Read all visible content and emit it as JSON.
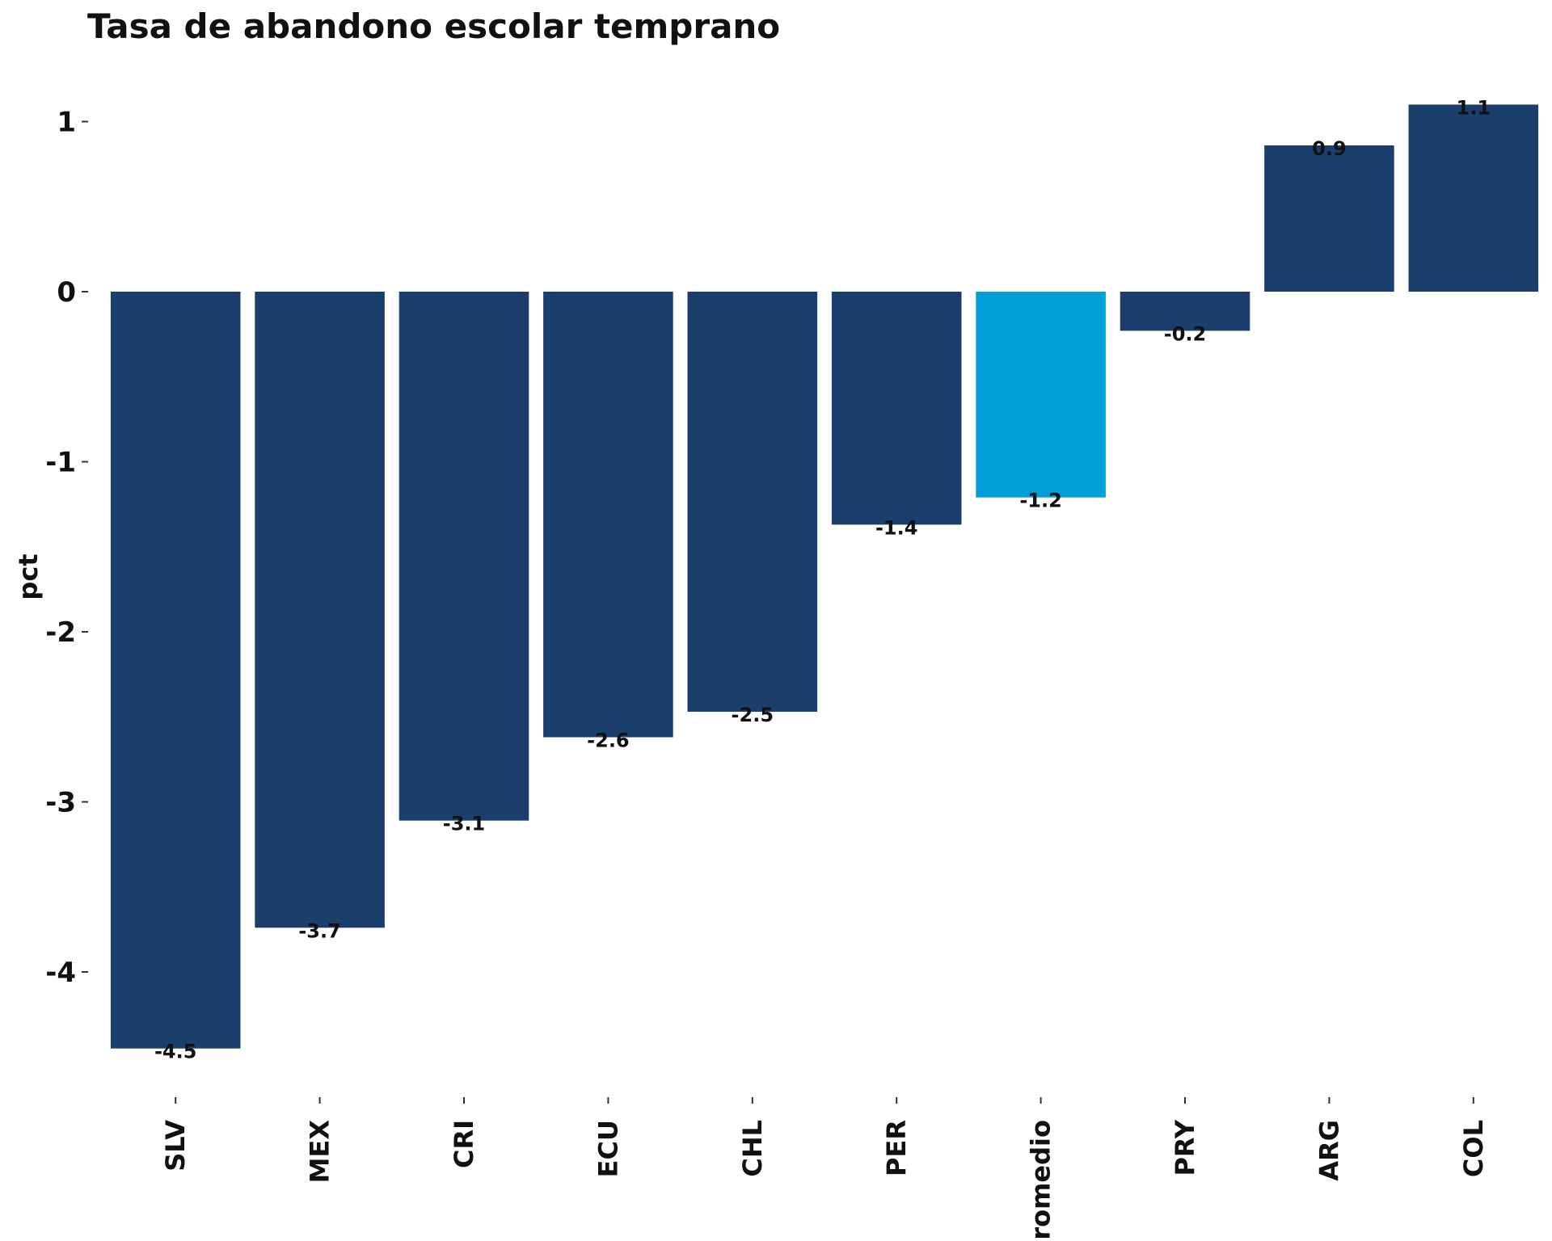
{
  "chart_data": {
    "type": "bar",
    "title": "Tasa de abandono escolar temprano",
    "xlabel": "",
    "ylabel": "pct",
    "categories": [
      "SLV",
      "MEX",
      "CRI",
      "ECU",
      "CHL",
      "PER",
      "Promedio",
      "PRY",
      "ARG",
      "COL"
    ],
    "values": [
      -4.45,
      -3.74,
      -3.11,
      -2.62,
      -2.47,
      -1.37,
      -1.21,
      -0.23,
      0.86,
      1.1
    ],
    "labels": [
      "-4.5",
      "-3.7",
      "-3.1",
      "-2.6",
      "-2.5",
      "-1.4",
      "-1.2",
      "-0.2",
      "0.9",
      "1.1"
    ],
    "highlight_category": "Promedio",
    "ylim": [
      -4.6,
      1.2
    ],
    "yticks": [
      -4,
      -3,
      -2,
      -1,
      0,
      1
    ],
    "grid": false,
    "legend": "none",
    "colors": {
      "bar": "#1a3f6c",
      "highlight": "#009fd9",
      "text": "#111111"
    }
  }
}
